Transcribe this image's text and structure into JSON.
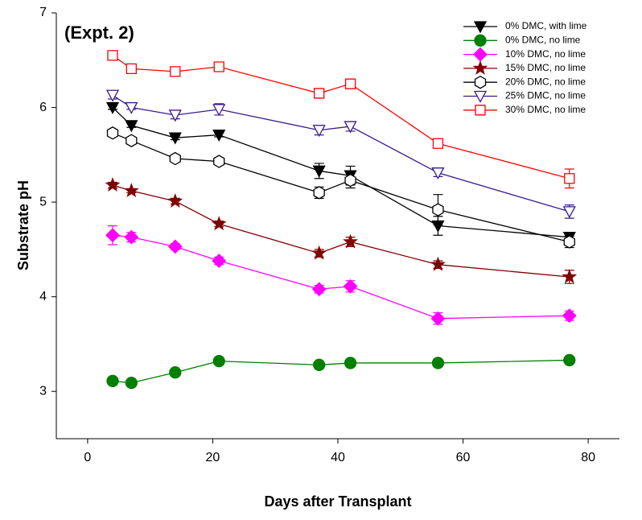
{
  "chart_data": {
    "type": "line",
    "annotation": "(Expt. 2)",
    "xlabel": "Days after Transplant",
    "ylabel": "Substrate pH",
    "x": [
      4,
      7,
      14,
      21,
      37,
      42,
      56,
      77
    ],
    "xlim": [
      -5,
      85
    ],
    "xticks": [
      0,
      20,
      40,
      60,
      80
    ],
    "ylim": [
      2.5,
      7
    ],
    "yticks": [
      3,
      4,
      5,
      6,
      7
    ],
    "grid": false,
    "legend": "upper right",
    "series": [
      {
        "name": "0% DMC, with lime",
        "color": "#000000",
        "marker": "triangle-down",
        "filled": true,
        "values": [
          6.0,
          5.81,
          5.68,
          5.71,
          5.33,
          5.28,
          4.75,
          4.63
        ],
        "errors": [
          0.02,
          0.02,
          0.02,
          0.02,
          0.08,
          0.1,
          0.1,
          0.03
        ]
      },
      {
        "name": "0% DMC, no lime",
        "color": "#008000",
        "marker": "circle",
        "filled": true,
        "values": [
          3.11,
          3.09,
          3.2,
          3.32,
          3.28,
          3.3,
          3.3,
          3.33
        ],
        "errors": [
          0.03,
          0.02,
          0.02,
          0.02,
          0.02,
          0.04,
          0.04,
          0.02
        ]
      },
      {
        "name": "10% DMC, no lime",
        "color": "#ff00ff",
        "marker": "diamond",
        "filled": true,
        "values": [
          4.65,
          4.63,
          4.53,
          4.38,
          4.08,
          4.11,
          3.77,
          3.8
        ],
        "errors": [
          0.1,
          0.05,
          0.03,
          0.04,
          0.04,
          0.06,
          0.06,
          0.05
        ]
      },
      {
        "name": "15% DMC, no lime",
        "color": "#800000",
        "marker": "star",
        "filled": true,
        "values": [
          5.18,
          5.12,
          5.01,
          4.77,
          4.46,
          4.58,
          4.34,
          4.21
        ],
        "errors": [
          0.03,
          0.02,
          0.03,
          0.03,
          0.04,
          0.05,
          0.04,
          0.07
        ]
      },
      {
        "name": "20% DMC, no lime",
        "color": "#000000",
        "marker": "hexagon",
        "filled": false,
        "values": [
          5.73,
          5.65,
          5.46,
          5.43,
          5.1,
          5.23,
          4.92,
          4.58
        ],
        "errors": [
          0.02,
          0.02,
          0.02,
          0.03,
          0.06,
          0.08,
          0.16,
          0.06
        ]
      },
      {
        "name": "25% DMC, no lime",
        "color": "#3a1a8c",
        "marker": "triangle-down",
        "filled": false,
        "values": [
          6.13,
          6.0,
          5.92,
          5.98,
          5.76,
          5.8,
          5.31,
          4.9
        ],
        "errors": [
          0.04,
          0.02,
          0.04,
          0.06,
          0.05,
          0.05,
          0.04,
          0.07
        ]
      },
      {
        "name": "30% DMC, no lime",
        "color": "#ff0000",
        "marker": "square",
        "filled": false,
        "values": [
          6.55,
          6.41,
          6.38,
          6.43,
          6.15,
          6.25,
          5.62,
          5.25
        ],
        "errors": [
          0.04,
          0.03,
          0.03,
          0.04,
          0.03,
          0.03,
          0.03,
          0.1
        ]
      }
    ]
  }
}
